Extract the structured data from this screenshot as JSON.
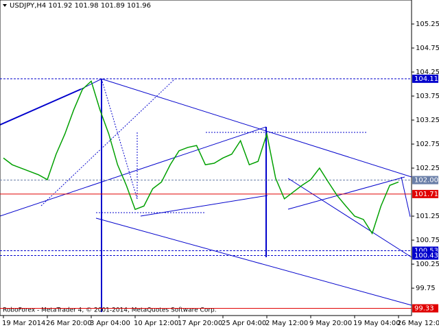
{
  "chart_data": {
    "type": "line",
    "title": "USDJPY,H4  101.92 101.98 101.89 101.96",
    "footer": "RoboForex - MetaTrader 4, © 2001-2014, MetaQuotes Software Corp.",
    "categories": [
      "19 Mar 2014",
      null,
      null,
      null,
      null,
      "26 Mar 20:00",
      null,
      null,
      null,
      null,
      "3 Apr 04:00",
      null,
      null,
      null,
      null,
      "10 Apr 12:00",
      null,
      null,
      null,
      null,
      "17 Apr 20:00",
      null,
      null,
      null,
      null,
      "25 Apr 04:00",
      null,
      null,
      null,
      null,
      "2 May 12:00",
      null,
      null,
      null,
      null,
      "9 May 20:00",
      null,
      null,
      null,
      null,
      "19 May 04:00",
      null,
      null,
      null,
      null,
      "26 May 12:00"
    ],
    "series": [
      {
        "name": "USDJPY",
        "color": "#00a000",
        "values": [
          102.46,
          102.32,
          102.25,
          102.18,
          102.11,
          102.01,
          102.54,
          102.96,
          103.46,
          103.89,
          104.06,
          103.46,
          102.96,
          102.32,
          101.89,
          101.39,
          101.46,
          101.82,
          101.96,
          102.32,
          102.61,
          102.68,
          102.72,
          102.32,
          102.35,
          102.46,
          102.54,
          102.82,
          102.32,
          102.39,
          102.96,
          102.04,
          101.61,
          101.75,
          101.89,
          102.01,
          102.25,
          101.96,
          101.68,
          101.46,
          101.25,
          101.18,
          100.89,
          101.46,
          101.89,
          101.96
        ]
      }
    ],
    "ylim": [
      99.18,
      105.75
    ],
    "yticks": [
      105.25,
      104.75,
      104.25,
      103.75,
      103.25,
      102.75,
      102.25,
      101.25,
      100.75,
      100.25,
      99.75
    ],
    "levels": [
      {
        "value": 104.11,
        "color": "#0000cc"
      },
      {
        "value": 102,
        "label": "102.00",
        "color": "#6a7fa8"
      },
      {
        "value": 101.71,
        "color": "#e00000"
      },
      {
        "value": 100.53,
        "color": "#0000cc"
      },
      {
        "value": 100.43,
        "color": "#0000cc"
      },
      {
        "value": 99.33,
        "color": "#e00000"
      }
    ]
  }
}
